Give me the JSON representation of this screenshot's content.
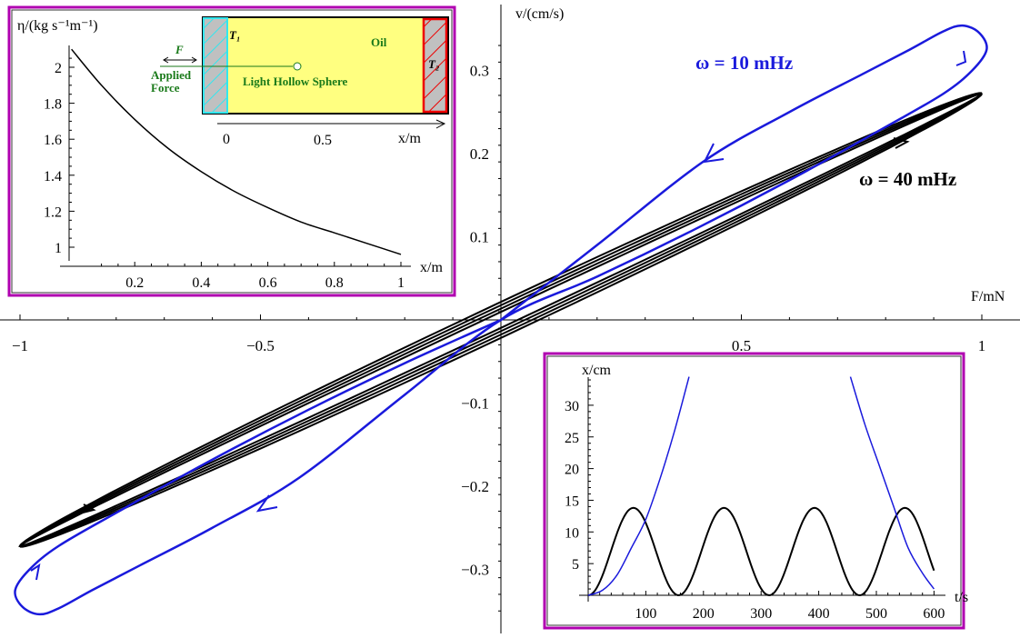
{
  "chart_data": [
    {
      "id": "main",
      "type": "line",
      "xlabel": "F/mN",
      "ylabel": "v/(cm/s)",
      "xlim": [
        -1.05,
        1.05
      ],
      "ylim": [
        -0.37,
        0.38
      ],
      "xticks": [
        -1,
        -0.5,
        0.5,
        1
      ],
      "xtick_labels": [
        "−1",
        "−0.5",
        "0.5",
        "1"
      ],
      "yticks": [
        0.3,
        0.2,
        0.1,
        -0.1,
        -0.2,
        -0.3
      ],
      "ytick_labels": [
        "0.3",
        "0.2",
        "0.1",
        "−0.1",
        "−0.2",
        "−0.3"
      ],
      "series": [
        {
          "name": "ω  =  10 mHz",
          "color": "#1a1adc",
          "points": [
            [
              0,
              0
            ],
            [
              0.2,
              0.09
            ],
            [
              0.42,
              0.19
            ],
            [
              0.6,
              0.25
            ],
            [
              0.75,
              0.295
            ],
            [
              0.85,
              0.325
            ],
            [
              0.92,
              0.347
            ],
            [
              0.96,
              0.354
            ],
            [
              0.995,
              0.345
            ],
            [
              1.01,
              0.325
            ],
            [
              0.98,
              0.3
            ],
            [
              0.92,
              0.272
            ],
            [
              0.8,
              0.232
            ],
            [
              0.6,
              0.168
            ],
            [
              0.4,
              0.108
            ],
            [
              0.2,
              0.052
            ],
            [
              0,
              0
            ],
            [
              -0.2,
              -0.09
            ],
            [
              -0.42,
              -0.19
            ],
            [
              -0.6,
              -0.25
            ],
            [
              -0.75,
              -0.295
            ],
            [
              -0.85,
              -0.325
            ],
            [
              -0.92,
              -0.347
            ],
            [
              -0.96,
              -0.354
            ],
            [
              -0.995,
              -0.345
            ],
            [
              -1.01,
              -0.325
            ],
            [
              -0.98,
              -0.3
            ],
            [
              -0.92,
              -0.272
            ],
            [
              -0.8,
              -0.232
            ],
            [
              -0.6,
              -0.168
            ],
            [
              -0.4,
              -0.108
            ],
            [
              -0.2,
              -0.052
            ],
            [
              0,
              0
            ]
          ]
        },
        {
          "name": "ω  =  40 mHz",
          "color": "#000000",
          "amplitude_F": 1.0,
          "amplitude_v": 0.272,
          "loop_width_v": 0.016
        }
      ]
    },
    {
      "id": "viscosity-inset",
      "type": "line",
      "xlabel": "x/m",
      "ylabel": "η/(kg s⁻¹m⁻¹)",
      "xlim": [
        0,
        1
      ],
      "ylim": [
        0.95,
        2.12
      ],
      "xticks": [
        0.2,
        0.4,
        0.6,
        0.8,
        1
      ],
      "xtick_labels": [
        "0.2",
        "0.4",
        "0.6",
        "0.8",
        "1"
      ],
      "yticks": [
        1,
        1.2,
        1.4,
        1.6,
        1.8,
        2
      ],
      "ytick_labels": [
        "1",
        "1.2",
        "1.4",
        "1.6",
        "1.8",
        "2"
      ],
      "series": [
        {
          "name": "viscosity",
          "color": "#000",
          "points": [
            [
              0.01,
              2.1
            ],
            [
              0.1,
              1.9
            ],
            [
              0.2,
              1.71
            ],
            [
              0.3,
              1.55
            ],
            [
              0.4,
              1.42
            ],
            [
              0.5,
              1.31
            ],
            [
              0.6,
              1.22
            ],
            [
              0.7,
              1.14
            ],
            [
              0.8,
              1.08
            ],
            [
              0.9,
              1.02
            ],
            [
              1.0,
              0.96
            ]
          ]
        }
      ]
    },
    {
      "id": "position-inset",
      "type": "line",
      "xlabel": "t/s",
      "ylabel": "x/cm",
      "xlim": [
        0,
        620
      ],
      "ylim": [
        0,
        34
      ],
      "xticks": [
        100,
        200,
        300,
        400,
        500,
        600
      ],
      "xtick_labels": [
        "100",
        "200",
        "300",
        "400",
        "500",
        "600"
      ],
      "yticks": [
        5,
        10,
        15,
        20,
        25,
        30
      ],
      "ytick_labels": [
        "5",
        "10",
        "15",
        "20",
        "25",
        "30"
      ],
      "series": [
        {
          "name": "10 mHz",
          "color": "#1a1adc",
          "points": [
            [
              0,
              0
            ],
            [
              25,
              0.8
            ],
            [
              50,
              3.2
            ],
            [
              75,
              7.5
            ],
            [
              100,
              12
            ],
            [
              125,
              18.5
            ],
            [
              150,
              26
            ],
            [
              175,
              34.5
            ]
          ],
          "points2": [
            [
              455,
              34.5
            ],
            [
              480,
              27
            ],
            [
              505,
              20.5
            ],
            [
              530,
              14
            ],
            [
              555,
              7.5
            ],
            [
              580,
              3.5
            ],
            [
              600,
              1
            ]
          ]
        },
        {
          "name": "40 mHz",
          "color": "#000",
          "amplitude": 13.8,
          "period": 157,
          "t_end": 600
        }
      ]
    }
  ],
  "diagram": {
    "t1": "T₁",
    "t2": "T₂",
    "oil": "Oil",
    "force": "F",
    "applied": "Applied",
    "force_word": "Force",
    "sphere": "Light Hollow Sphere",
    "ticks": [
      "0",
      "0.5"
    ],
    "axis": "x/m"
  }
}
